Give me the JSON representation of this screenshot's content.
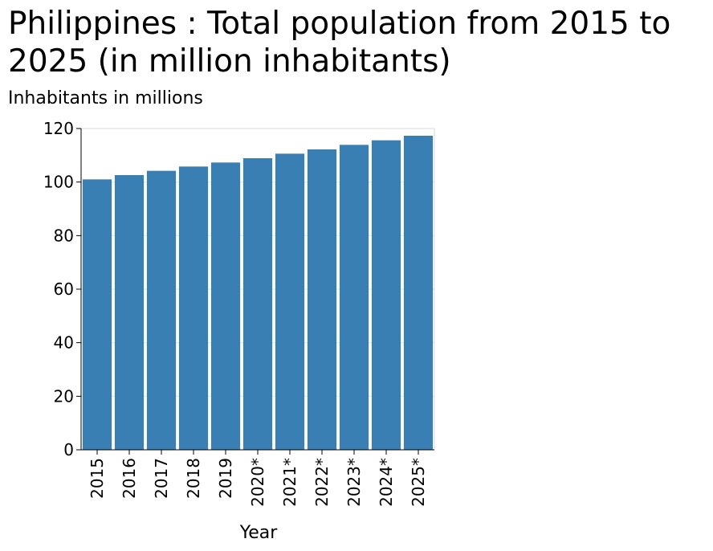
{
  "chart_data": {
    "type": "bar",
    "title": "Philippines : Total population from 2015 to 2025 (in million inhabitants)",
    "xlabel": "Year",
    "ylabel": "Inhabitants in millions",
    "categories": [
      "2015",
      "2016",
      "2017",
      "2018",
      "2019",
      "2020*",
      "2021*",
      "2022*",
      "2023*",
      "2024*",
      "2025*"
    ],
    "values": [
      101.0,
      102.6,
      104.2,
      105.8,
      107.3,
      108.9,
      110.6,
      112.2,
      113.9,
      115.6,
      117.3
    ],
    "ylim": [
      0,
      120
    ],
    "yticks": [
      0,
      20,
      40,
      60,
      80,
      100,
      120
    ],
    "grid": true,
    "bar_color": "#3a7fb3",
    "grid_color": "#e6e6e6"
  }
}
